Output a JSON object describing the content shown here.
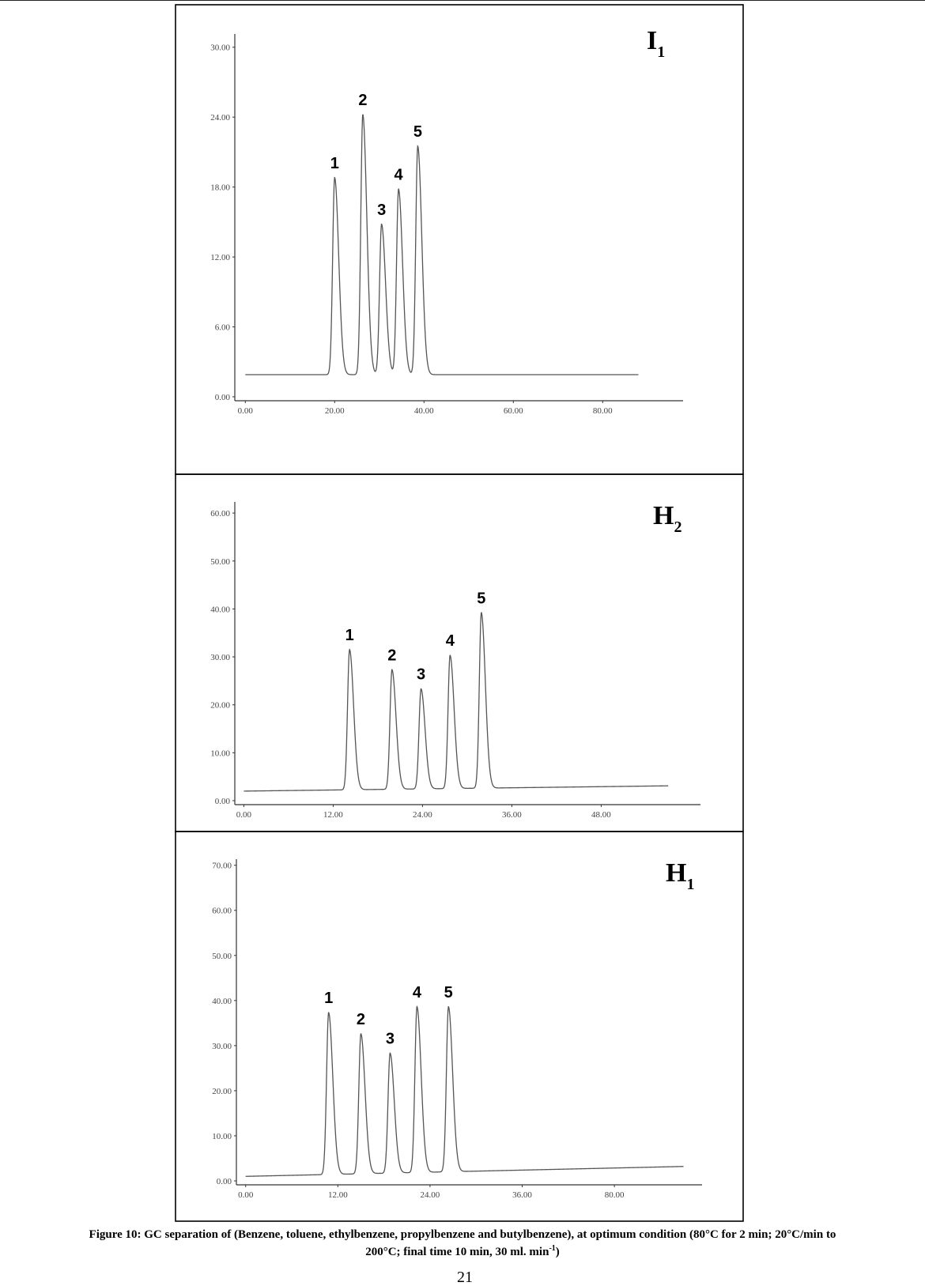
{
  "caption": {
    "line1": "Figure 10: GC separation of (Benzene, toluene, ethylbenzene, propylbenzene and butylbenzene), at optimum condition (80°C for 2 min; 20°C/min to",
    "line2_main": "200°C; final time 10 min, 30 ml. min",
    "line2_sup": "-1",
    "line2_end": ")"
  },
  "page_number": "21",
  "colors": {
    "trace": "#555555",
    "axis": "#333333",
    "frame": "#000000",
    "label": "#000000"
  },
  "chart_data": [
    {
      "type": "line",
      "panel_label": "I",
      "panel_subscript": "1",
      "yticks": [
        "0.00",
        "6.00",
        "12.00",
        "18.00",
        "24.00",
        "30.00"
      ],
      "ytick_values": [
        0,
        6,
        12,
        18,
        24,
        30
      ],
      "xticks": [
        "0.00",
        "20.00",
        "40.00",
        "60.00",
        "80.00"
      ],
      "xtick_values": [
        0,
        20,
        40,
        60,
        80
      ],
      "xlim": [
        -2,
        98
      ],
      "ylim": [
        0,
        31
      ],
      "baseline": [
        [
          0,
          1.9
        ],
        [
          88,
          1.9
        ]
      ],
      "peaks": [
        {
          "label": "1",
          "x": 20.0,
          "height": 18.8
        },
        {
          "label": "2",
          "x": 26.3,
          "height": 24.2
        },
        {
          "label": "3",
          "x": 30.5,
          "height": 14.8
        },
        {
          "label": "4",
          "x": 34.3,
          "height": 17.8
        },
        {
          "label": "5",
          "x": 38.6,
          "height": 21.5
        }
      ],
      "grid": false
    },
    {
      "type": "line",
      "panel_label": "H",
      "panel_subscript": "2",
      "yticks": [
        "0.00",
        "10.00",
        "20.00",
        "30.00",
        "40.00",
        "50.00",
        "60.00"
      ],
      "ytick_values": [
        0,
        10,
        20,
        30,
        40,
        50,
        60
      ],
      "xticks": [
        "0.00",
        "12.00",
        "24.00",
        "36.00",
        "48.00"
      ],
      "xtick_values": [
        0,
        12,
        24,
        36,
        48
      ],
      "xlim": [
        -1,
        59
      ],
      "ylim": [
        0,
        62
      ],
      "baseline": [
        [
          0,
          2.0
        ],
        [
          57,
          3.1
        ]
      ],
      "peaks": [
        {
          "label": "1",
          "x": 14.2,
          "height": 31.5
        },
        {
          "label": "2",
          "x": 19.9,
          "height": 27.3
        },
        {
          "label": "3",
          "x": 23.8,
          "height": 23.3
        },
        {
          "label": "4",
          "x": 27.7,
          "height": 30.3
        },
        {
          "label": "5",
          "x": 31.9,
          "height": 39.2
        }
      ],
      "grid": false
    },
    {
      "type": "line",
      "panel_label": "H",
      "panel_subscript": "1",
      "yticks": [
        "0.00",
        "10.00",
        "20.00",
        "30.00",
        "40.00",
        "50.00",
        "60.00",
        "70.00"
      ],
      "ytick_values": [
        0,
        10,
        20,
        30,
        40,
        50,
        60,
        70
      ],
      "xticks": [
        "0.00",
        "12.00",
        "24.00",
        "36.00",
        "80.00"
      ],
      "xtick_positions": [
        0,
        12,
        24,
        36,
        48
      ],
      "xlim": [
        -1,
        59
      ],
      "ylim": [
        0,
        71
      ],
      "baseline": [
        [
          0,
          1.0
        ],
        [
          57,
          3.2
        ]
      ],
      "peaks": [
        {
          "label": "1",
          "x": 10.8,
          "height": 37.3
        },
        {
          "label": "2",
          "x": 15.0,
          "height": 32.6
        },
        {
          "label": "3",
          "x": 18.8,
          "height": 28.3
        },
        {
          "label": "4",
          "x": 22.3,
          "height": 38.6
        },
        {
          "label": "5",
          "x": 26.4,
          "height": 38.6
        }
      ],
      "grid": false
    }
  ]
}
